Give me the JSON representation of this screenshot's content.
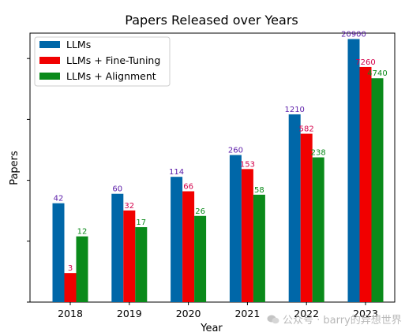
{
  "chart_data": {
    "type": "bar",
    "title": "Papers Released over Years",
    "xlabel": "Year",
    "ylabel": "Papers",
    "y_scale": "log",
    "y_ticks_labeled": false,
    "categories": [
      "2018",
      "2019",
      "2020",
      "2021",
      "2022",
      "2023"
    ],
    "series": [
      {
        "name": "LLMs",
        "color": "#0067a8",
        "label_color": "#5a1aa8",
        "values": [
          42,
          60,
          114,
          260,
          1210,
          20900
        ]
      },
      {
        "name": "LLMs + Fine-Tuning",
        "color": "#f10000",
        "label_color": "#d4004a",
        "values": [
          3,
          32,
          66,
          153,
          582,
          7260
        ]
      },
      {
        "name": "LLMs + Alignment",
        "color": "#0a8a1a",
        "label_color": "#0a8a1a",
        "values": [
          12,
          17,
          26,
          58,
          238,
          4740
        ]
      }
    ],
    "legend_position": "top-left",
    "grid": false
  },
  "watermark": {
    "text": "公众号 · barry的异想世界",
    "icon": "wechat-icon"
  }
}
